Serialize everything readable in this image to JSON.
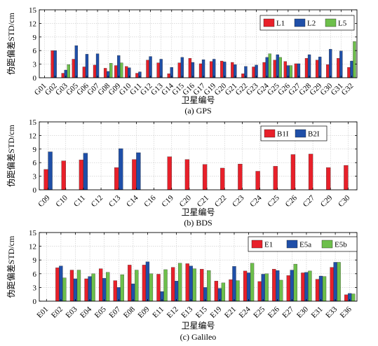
{
  "chart_data": [
    {
      "type": "bar",
      "caption": "(a) GPS",
      "xlabel": "卫星编号",
      "ylabel": "伪距偏差STD/cm",
      "ylim": [
        0,
        15
      ],
      "yticks": [
        0,
        3,
        6,
        9,
        12,
        15
      ],
      "grid": true,
      "legend_position": "top-right",
      "categories": [
        "G01",
        "G02",
        "G03",
        "G05",
        "G06",
        "G07",
        "G08",
        "G09",
        "G10",
        "G11",
        "G12",
        "G13",
        "G14",
        "G15",
        "G16",
        "G17",
        "G19",
        "G20",
        "G21",
        "G22",
        "G23",
        "G24",
        "G25",
        "G26",
        "G27",
        "G28",
        "G29",
        "G30",
        "G31",
        "G32"
      ],
      "series": [
        {
          "name": "L1",
          "color": "#e8202a",
          "values": [
            0,
            6.0,
            1.0,
            4.1,
            2.4,
            2.8,
            2.1,
            2.7,
            2.5,
            1.0,
            3.9,
            3.3,
            0.9,
            3.3,
            4.3,
            3.1,
            3.6,
            3.7,
            3.4,
            0.9,
            2.4,
            3.4,
            3.9,
            3.6,
            3.1,
            4.3,
            3.9,
            2.9,
            4.3,
            2.3
          ]
        },
        {
          "name": "L2",
          "color": "#1f4fa8",
          "values": [
            0,
            6.0,
            1.7,
            7.1,
            5.2,
            5.3,
            1.4,
            4.9,
            2.2,
            1.3,
            4.7,
            4.1,
            2.3,
            4.5,
            3.4,
            4.0,
            4.1,
            3.5,
            2.9,
            2.5,
            2.8,
            4.5,
            5.1,
            2.7,
            3.1,
            5.1,
            4.6,
            6.3,
            5.9,
            3.7
          ]
        },
        {
          "name": "L5",
          "color": "#6dbf4b",
          "values": [
            0,
            0,
            2.9,
            0,
            0,
            0,
            3.2,
            3.3,
            0,
            0,
            0,
            0,
            0,
            0,
            0,
            0,
            0,
            0,
            0,
            0,
            0,
            5.3,
            4.5,
            2.7,
            0,
            0,
            0,
            0,
            0,
            8.0
          ]
        }
      ]
    },
    {
      "type": "bar",
      "caption": "(b) BDS",
      "xlabel": "卫星编号",
      "ylabel": "伪距偏差STD/cm",
      "ylim": [
        0,
        15
      ],
      "yticks": [
        0,
        3,
        6,
        9,
        12,
        15
      ],
      "grid": true,
      "legend_position": "top-right",
      "categories": [
        "C09",
        "C10",
        "C11",
        "C12",
        "C13",
        "C14",
        "C16",
        "C19",
        "C20",
        "C21",
        "C22",
        "C23",
        "C24",
        "C25",
        "C26",
        "C27",
        "C29",
        "C30"
      ],
      "series": [
        {
          "name": "B1I",
          "color": "#e8202a",
          "values": [
            4.5,
            6.4,
            6.6,
            0,
            4.9,
            6.7,
            0,
            7.3,
            6.7,
            5.6,
            4.8,
            5.7,
            4.1,
            5.2,
            7.8,
            7.9,
            4.9,
            5.4
          ]
        },
        {
          "name": "B2I",
          "color": "#1f4fa8",
          "values": [
            8.4,
            0,
            8.1,
            0,
            9.1,
            8.2,
            0,
            0,
            0,
            0,
            0,
            0,
            0,
            0,
            0,
            0,
            0,
            0
          ]
        }
      ]
    },
    {
      "type": "bar",
      "caption": "(c) Galileo",
      "xlabel": "卫星编号",
      "ylabel": "伪距偏差STD/cm",
      "ylim": [
        0,
        15
      ],
      "yticks": [
        0,
        3,
        6,
        9,
        12,
        15
      ],
      "grid": true,
      "legend_position": "top-right",
      "categories": [
        "E01",
        "E02",
        "E03",
        "E04",
        "E05",
        "E07",
        "E08",
        "E09",
        "E11",
        "E12",
        "E13",
        "E15",
        "E19",
        "E21",
        "E24",
        "E25",
        "E26",
        "E27",
        "E30",
        "E31",
        "E33",
        "E36"
      ],
      "series": [
        {
          "name": "E1",
          "color": "#e8202a",
          "values": [
            0,
            7.3,
            6.8,
            4.9,
            7.1,
            4.5,
            7.9,
            7.9,
            5.9,
            7.4,
            8.2,
            7.0,
            4.4,
            4.7,
            6.6,
            4.3,
            7.0,
            5.6,
            6.2,
            4.8,
            7.4,
            1.4
          ]
        },
        {
          "name": "E5a",
          "color": "#1f4fa8",
          "values": [
            0,
            7.7,
            4.9,
            5.4,
            5.0,
            3.0,
            3.8,
            8.6,
            2.1,
            4.4,
            7.7,
            3.0,
            2.8,
            7.6,
            6.2,
            5.9,
            6.7,
            6.8,
            6.3,
            5.5,
            8.5,
            1.7
          ]
        },
        {
          "name": "E5b",
          "color": "#6dbf4b",
          "values": [
            0,
            5.1,
            6.8,
            6.0,
            6.3,
            5.8,
            6.8,
            6.0,
            6.9,
            8.3,
            7.1,
            6.7,
            4.0,
            4.5,
            8.3,
            6.0,
            4.6,
            8.1,
            6.6,
            5.4,
            8.5,
            1.6
          ]
        }
      ]
    }
  ]
}
